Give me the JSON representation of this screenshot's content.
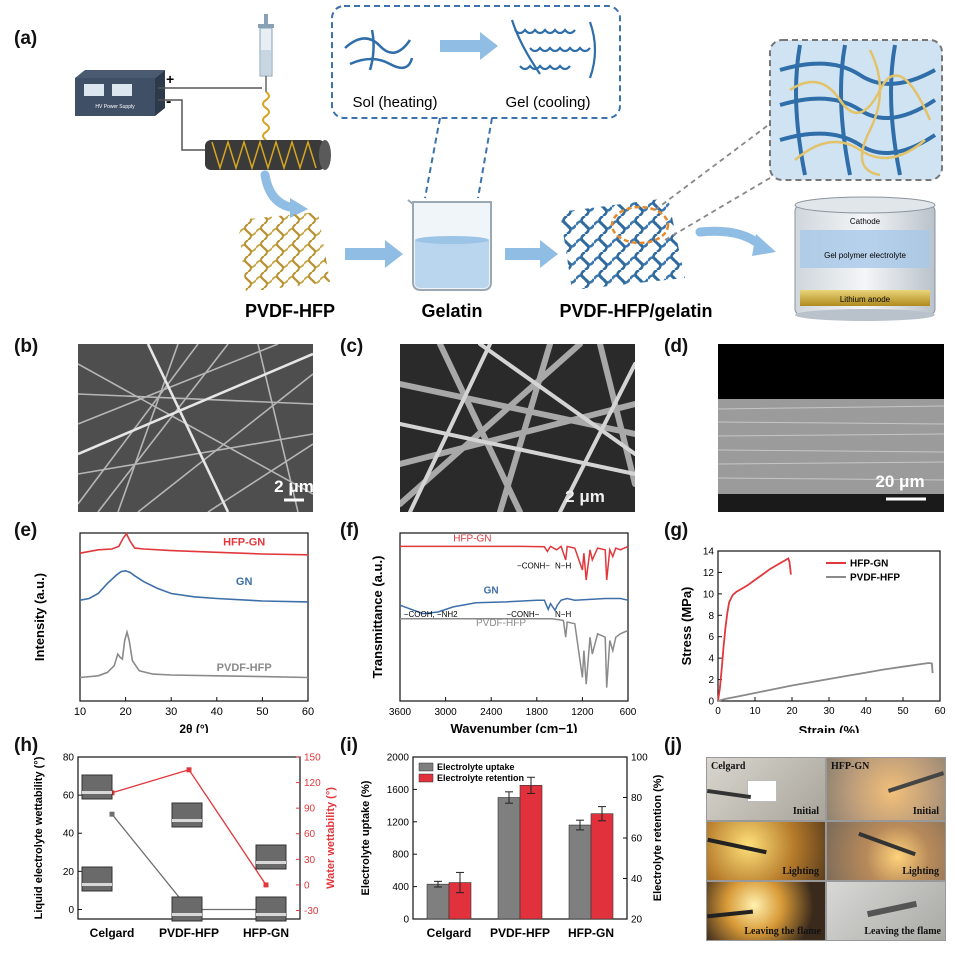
{
  "panel_labels": [
    "(a)",
    "(b)",
    "(c)",
    "(d)",
    "(e)",
    "(f)",
    "(g)",
    "(h)",
    "(i)",
    "(j)"
  ],
  "schematic": {
    "hv_label": "HV Power Supply",
    "plus": "+",
    "minus": "-",
    "sol": "Sol (heating)",
    "gel": "Gel (cooling)",
    "pvdf_hfp": "PVDF-HFP",
    "gelatin": "Gelatin",
    "composite": "PVDF-HFP/gelatin",
    "battery_cathode": "Cathode",
    "battery_electrolyte": "Gel polymer electrolyte",
    "battery_anode": "Lithium anode"
  },
  "micrographs": {
    "b_scale": "2 μm",
    "c_scale": "2 μm",
    "d_scale": "20 μm"
  },
  "photos": {
    "celgard": "Celgard",
    "hfpgn": "HFP-GN",
    "initial": "Initial",
    "lighting": "Lighting",
    "leaving": "Leaving the flame"
  },
  "chart_data": [
    {
      "id": "e",
      "type": "line",
      "xlabel": "2θ (°)",
      "ylabel": "Intensity (a.u.)",
      "xlim": [
        10,
        60
      ],
      "xticks": [
        10,
        20,
        30,
        40,
        50,
        60
      ],
      "series": [
        {
          "name": "HFP-GN",
          "color": "#e0383c",
          "x": [
            10,
            14,
            17,
            18.5,
            19.5,
            20.2,
            21,
            22,
            24,
            30,
            40,
            50,
            60
          ],
          "y": [
            0.88,
            0.9,
            0.905,
            0.92,
            0.97,
            0.995,
            0.95,
            0.91,
            0.905,
            0.895,
            0.885,
            0.875,
            0.87
          ]
        },
        {
          "name": "GN",
          "color": "#3d6fa8",
          "x": [
            10,
            12,
            14,
            16,
            18,
            19,
            20,
            21,
            22,
            24,
            27,
            30,
            35,
            40,
            50,
            60
          ],
          "y": [
            0.6,
            0.61,
            0.64,
            0.7,
            0.75,
            0.77,
            0.775,
            0.765,
            0.745,
            0.71,
            0.67,
            0.64,
            0.62,
            0.61,
            0.595,
            0.59
          ]
        },
        {
          "name": "PVDF-HFP",
          "color": "#8a8a8a",
          "x": [
            10,
            14,
            16,
            17.5,
            18.3,
            18.8,
            19.3,
            19.8,
            20.3,
            20.8,
            21.5,
            23,
            26,
            30,
            40,
            50,
            60
          ],
          "y": [
            0.14,
            0.15,
            0.17,
            0.21,
            0.28,
            0.26,
            0.25,
            0.36,
            0.41,
            0.36,
            0.24,
            0.18,
            0.16,
            0.155,
            0.15,
            0.145,
            0.14
          ]
        }
      ]
    },
    {
      "id": "f",
      "type": "line",
      "xlabel": "Wavenumber (cm−1)",
      "ylabel": "Transmittance (a.u.)",
      "xlim": [
        3600,
        600
      ],
      "xticks": [
        3600,
        3000,
        2400,
        1800,
        1200,
        600
      ],
      "annotations": [
        "−CONH−",
        "N−H",
        "−COOH, −NH2",
        "−CONH−",
        "N−H"
      ],
      "series": [
        {
          "name": "HFP-GN",
          "color": "#e0383c",
          "x": [
            3600,
            2000,
            1700,
            1660,
            1620,
            1540,
            1480,
            1420,
            1400,
            1300,
            1200,
            1180,
            1150,
            1100,
            1070,
            1000,
            900,
            880,
            840,
            800,
            760,
            700,
            600
          ],
          "y": [
            0.92,
            0.92,
            0.918,
            0.89,
            0.92,
            0.9,
            0.92,
            0.84,
            0.92,
            0.91,
            0.78,
            0.88,
            0.72,
            0.9,
            0.84,
            0.91,
            0.9,
            0.72,
            0.9,
            0.86,
            0.91,
            0.9,
            0.92
          ]
        },
        {
          "name": "GN",
          "color": "#3d6fa8",
          "x": [
            3600,
            3300,
            3100,
            2900,
            2600,
            2200,
            1800,
            1700,
            1650,
            1620,
            1560,
            1530,
            1480,
            1400,
            1300,
            1100,
            900,
            700,
            600
          ],
          "y": [
            0.57,
            0.52,
            0.53,
            0.56,
            0.585,
            0.59,
            0.6,
            0.6,
            0.545,
            0.58,
            0.54,
            0.57,
            0.6,
            0.61,
            0.6,
            0.605,
            0.61,
            0.61,
            0.6
          ]
        },
        {
          "name": "PVDF-HFP",
          "color": "#8a8a8a",
          "x": [
            3600,
            2000,
            1600,
            1450,
            1420,
            1400,
            1300,
            1200,
            1180,
            1150,
            1100,
            1070,
            1000,
            900,
            880,
            840,
            800,
            760,
            700,
            600
          ],
          "y": [
            0.49,
            0.49,
            0.49,
            0.48,
            0.38,
            0.47,
            0.46,
            0.14,
            0.3,
            0.1,
            0.38,
            0.28,
            0.4,
            0.38,
            0.08,
            0.36,
            0.3,
            0.38,
            0.4,
            0.42
          ]
        }
      ]
    },
    {
      "id": "g",
      "type": "line",
      "xlabel": "Strain (%)",
      "ylabel": "Stress (MPa)",
      "xlim": [
        0,
        60
      ],
      "ylim": [
        0,
        14
      ],
      "xticks": [
        0,
        10,
        20,
        30,
        40,
        50,
        60
      ],
      "yticks": [
        0,
        2,
        4,
        6,
        8,
        10,
        12,
        14
      ],
      "legend": "top-right",
      "series": [
        {
          "name": "HFP-GN",
          "color": "#e0383c",
          "x": [
            0,
            0.5,
            1,
            1.5,
            2,
            2.5,
            3,
            4,
            5,
            6,
            8,
            10,
            12,
            14,
            16,
            18,
            19,
            19.3,
            19.5,
            19.7
          ],
          "y": [
            0,
            1.2,
            3,
            5,
            6.8,
            8.2,
            9.2,
            9.9,
            10.2,
            10.4,
            10.8,
            11.3,
            11.8,
            12.3,
            12.7,
            13.1,
            13.3,
            13.0,
            12.4,
            11.8
          ]
        },
        {
          "name": "PVDF-HFP",
          "color": "#8a8a8a",
          "x": [
            0,
            2,
            5,
            10,
            15,
            20,
            25,
            30,
            35,
            40,
            45,
            50,
            55,
            57,
            57.8,
            58
          ],
          "y": [
            0,
            0.2,
            0.4,
            0.75,
            1.1,
            1.45,
            1.75,
            2.05,
            2.35,
            2.65,
            2.95,
            3.2,
            3.45,
            3.55,
            3.5,
            2.6
          ]
        }
      ]
    },
    {
      "id": "h",
      "type": "line",
      "categories": [
        "Celgard",
        "PVDF-HFP",
        "HFP-GN"
      ],
      "ylabel": "Liquid electrolyte wettability (°)",
      "ylabel_right": "Water wettability (°)",
      "ylim": [
        -5,
        80
      ],
      "yticks": [
        0,
        20,
        40,
        60,
        80
      ],
      "ylim_right": [
        -40,
        150
      ],
      "yticks_right": [
        -30,
        0,
        30,
        60,
        90,
        120,
        150
      ],
      "series": [
        {
          "name": "Liquid electrolyte wettability",
          "color": "#6e6e6e",
          "axis": "left",
          "values": [
            50,
            0,
            0
          ]
        },
        {
          "name": "Water wettability",
          "color": "#e0383c",
          "axis": "right",
          "values": [
            108,
            135,
            0
          ]
        }
      ]
    },
    {
      "id": "i",
      "type": "bar",
      "categories": [
        "Celgard",
        "PVDF-HFP",
        "HFP-GN"
      ],
      "ylabel": "Electrolyte uptake (%)",
      "ylabel_right": "Electrolyte retention (%)",
      "ylim": [
        0,
        2000
      ],
      "yticks": [
        0,
        400,
        800,
        1200,
        1600,
        2000
      ],
      "ylim_right": [
        20,
        100
      ],
      "yticks_right": [
        20,
        40,
        60,
        80,
        100
      ],
      "legend": "top-left",
      "series": [
        {
          "name": "Electrolyte uptake",
          "color": "#7f7f7f",
          "axis": "left",
          "values": [
            430,
            1500,
            1160
          ],
          "errors": [
            35,
            70,
            60
          ]
        },
        {
          "name": "Electrolyte retention",
          "color": "#e0313c",
          "axis": "right",
          "values": [
            38,
            86,
            72
          ],
          "errors": [
            5,
            4,
            3.5
          ]
        }
      ]
    }
  ]
}
